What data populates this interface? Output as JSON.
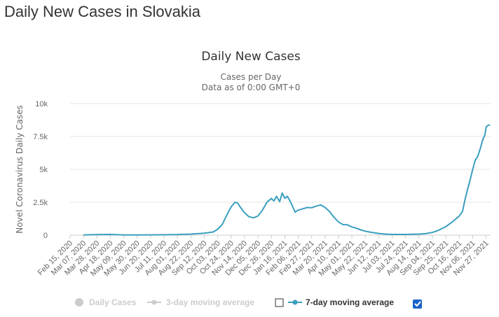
{
  "page": {
    "title": "Daily New Cases in Slovakia"
  },
  "chart_data": {
    "type": "line",
    "title": "Daily New Cases",
    "subtitle_lines": [
      "Cases per Day",
      "Data as of 0:00 GMT+0"
    ],
    "xlabel": "",
    "ylabel": "Novel Coronavirus Daily Cases",
    "ylim": [
      0,
      10000
    ],
    "y_ticks": [
      0,
      2500,
      5000,
      7500,
      10000
    ],
    "y_tick_labels": [
      "0",
      "2.5k",
      "5k",
      "7.5k",
      "10k"
    ],
    "x_ticks": [
      "Feb 15, 2020",
      "Mar 07, 2020",
      "Mar 28, 2020",
      "Apr 18, 2020",
      "May 09, 2020",
      "May 30, 2020",
      "Jun 20, 2020",
      "Jul 11, 2020",
      "Aug 01, 2020",
      "Aug 22, 2020",
      "Sep 12, 2020",
      "Oct 03, 2020",
      "Oct 24, 2020",
      "Nov 14, 2020",
      "Dec 05, 2020",
      "Dec 26, 2020",
      "Jan 16, 2021",
      "Feb 06, 2021",
      "Feb 27, 2021",
      "Mar 20, 2021",
      "Apr 10, 2021",
      "May 01, 2021",
      "May 22, 2021",
      "Jun 12, 2021",
      "Jul 03, 2021",
      "Jul 24, 2021",
      "Aug 14, 2021",
      "Sep 04, 2021",
      "Sep 25, 2021",
      "Oct 16, 2021",
      "Nov 06, 2021",
      "Nov 27, 2021"
    ],
    "x_range": [
      "2020-02-15",
      "2021-12-04"
    ],
    "grid": true,
    "legend_position": "bottom",
    "series": [
      {
        "name": "7-day moving average",
        "color": "#3a9fbf",
        "visible": true,
        "points": [
          [
            "2020-03-07",
            10
          ],
          [
            "2020-03-28",
            40
          ],
          [
            "2020-04-18",
            55
          ],
          [
            "2020-05-09",
            15
          ],
          [
            "2020-05-30",
            10
          ],
          [
            "2020-06-20",
            20
          ],
          [
            "2020-07-11",
            25
          ],
          [
            "2020-08-01",
            45
          ],
          [
            "2020-08-22",
            80
          ],
          [
            "2020-09-12",
            150
          ],
          [
            "2020-09-26",
            240
          ],
          [
            "2020-10-03",
            450
          ],
          [
            "2020-10-10",
            800
          ],
          [
            "2020-10-17",
            1500
          ],
          [
            "2020-10-24",
            2150
          ],
          [
            "2020-10-30",
            2500
          ],
          [
            "2020-11-03",
            2450
          ],
          [
            "2020-11-07",
            2150
          ],
          [
            "2020-11-14",
            1700
          ],
          [
            "2020-11-21",
            1400
          ],
          [
            "2020-11-28",
            1320
          ],
          [
            "2020-12-05",
            1450
          ],
          [
            "2020-12-12",
            1900
          ],
          [
            "2020-12-19",
            2500
          ],
          [
            "2020-12-26",
            2780
          ],
          [
            "2020-12-30",
            2600
          ],
          [
            "2021-01-03",
            2950
          ],
          [
            "2021-01-08",
            2550
          ],
          [
            "2021-01-12",
            3200
          ],
          [
            "2021-01-16",
            2800
          ],
          [
            "2021-01-20",
            2950
          ],
          [
            "2021-01-24",
            2600
          ],
          [
            "2021-01-28",
            2200
          ],
          [
            "2021-02-01",
            1750
          ],
          [
            "2021-02-06",
            1900
          ],
          [
            "2021-02-13",
            2000
          ],
          [
            "2021-02-20",
            2100
          ],
          [
            "2021-02-27",
            2080
          ],
          [
            "2021-03-06",
            2200
          ],
          [
            "2021-03-13",
            2300
          ],
          [
            "2021-03-20",
            2100
          ],
          [
            "2021-03-27",
            1800
          ],
          [
            "2021-04-03",
            1350
          ],
          [
            "2021-04-10",
            1000
          ],
          [
            "2021-04-17",
            800
          ],
          [
            "2021-04-24",
            780
          ],
          [
            "2021-05-01",
            620
          ],
          [
            "2021-05-08",
            520
          ],
          [
            "2021-05-15",
            400
          ],
          [
            "2021-05-22",
            300
          ],
          [
            "2021-06-01",
            210
          ],
          [
            "2021-06-12",
            130
          ],
          [
            "2021-06-22",
            80
          ],
          [
            "2021-07-03",
            55
          ],
          [
            "2021-07-24",
            55
          ],
          [
            "2021-08-14",
            80
          ],
          [
            "2021-08-24",
            110
          ],
          [
            "2021-09-04",
            200
          ],
          [
            "2021-09-14",
            380
          ],
          [
            "2021-09-25",
            650
          ],
          [
            "2021-10-05",
            1000
          ],
          [
            "2021-10-16",
            1450
          ],
          [
            "2021-10-21",
            1800
          ],
          [
            "2021-10-25",
            2700
          ],
          [
            "2021-10-29",
            3500
          ],
          [
            "2021-11-01",
            4000
          ],
          [
            "2021-11-06",
            5000
          ],
          [
            "2021-11-10",
            5700
          ],
          [
            "2021-11-14",
            6000
          ],
          [
            "2021-11-18",
            6600
          ],
          [
            "2021-11-22",
            7300
          ],
          [
            "2021-11-25",
            7600
          ],
          [
            "2021-11-27",
            8200
          ],
          [
            "2021-11-30",
            8350
          ],
          [
            "2021-12-03",
            8380
          ]
        ]
      }
    ],
    "legend": [
      {
        "label": "Daily Cases",
        "enabled": false,
        "checked": false
      },
      {
        "label": "3-day moving average",
        "enabled": false,
        "checked": false
      },
      {
        "label": "7-day moving average",
        "enabled": true,
        "checked": true
      }
    ],
    "colors": {
      "line": "#3a9fbf",
      "grid": "#e6e6e6",
      "checkbox": "#1a64c8",
      "legend_disabled": "#cccccc"
    }
  }
}
